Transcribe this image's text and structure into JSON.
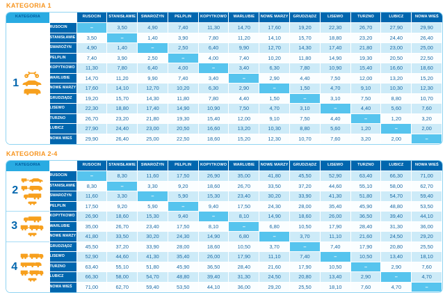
{
  "page": {
    "background": "#FFFFFF"
  },
  "colors": {
    "title_orange": "#F7941E",
    "icon_orange": "#F7A01E",
    "header_blue": "#0066AE",
    "corner_cyan": "#29ABE2",
    "diagonal_blue": "#56C4EE",
    "row_odd_blue": "#CDEBF8",
    "row_even_white": "#FBFEFF",
    "value_text_blue": "#1A6AA5",
    "border_light_blue": "#8FD4F2"
  },
  "stations": [
    "RUSOCIN",
    "STANISŁAWIE",
    "SWAROŻYN",
    "PELPLIN",
    "KOPYTKOWO",
    "WARLUBIE",
    "NOWE MARZY",
    "GRUDZIĄDZ",
    "LISEWO",
    "TURZNO",
    "LUBICZ",
    "NOWA WIEŚ"
  ],
  "empty_cell": "–",
  "tables": [
    {
      "title": "KATEGORIA 1",
      "corner_label": "KATEGORIA",
      "categories": [
        {
          "number": "1",
          "row_span": 12,
          "icons": [
            "motorcycle-icon",
            "car-icon",
            "van-icon"
          ]
        }
      ],
      "matrix": [
        [
          "–",
          "3,50",
          "4,90",
          "7,40",
          "11,30",
          "14,70",
          "17,60",
          "19,20",
          "22,30",
          "26,70",
          "27,90",
          "29,90"
        ],
        [
          "3,50",
          "–",
          "1,40",
          "3,90",
          "7,80",
          "11,20",
          "14,10",
          "15,70",
          "18,80",
          "23,20",
          "24,40",
          "26,40"
        ],
        [
          "4,90",
          "1,40",
          "–",
          "2,50",
          "6,40",
          "9,90",
          "12,70",
          "14,30",
          "17,40",
          "21,80",
          "23,00",
          "25,00"
        ],
        [
          "7,40",
          "3,90",
          "2,50",
          "–",
          "4,00",
          "7,40",
          "10,20",
          "11,80",
          "14,90",
          "19,30",
          "20,50",
          "22,50"
        ],
        [
          "11,30",
          "7,80",
          "6,40",
          "4,00",
          "–",
          "3,40",
          "6,30",
          "7,80",
          "10,90",
          "15,40",
          "16,60",
          "18,60"
        ],
        [
          "14,70",
          "11,20",
          "9,90",
          "7,40",
          "3,40",
          "–",
          "2,90",
          "4,40",
          "7,50",
          "12,00",
          "13,20",
          "15,20"
        ],
        [
          "17,60",
          "14,10",
          "12,70",
          "10,20",
          "6,30",
          "2,90",
          "–",
          "1,50",
          "4,70",
          "9,10",
          "10,30",
          "12,30"
        ],
        [
          "19,20",
          "15,70",
          "14,30",
          "11,80",
          "7,80",
          "4,40",
          "1,50",
          "–",
          "3,10",
          "7,50",
          "8,80",
          "10,70"
        ],
        [
          "22,30",
          "18,80",
          "17,40",
          "14,90",
          "10,90",
          "7,50",
          "4,70",
          "3,10",
          "–",
          "4,40",
          "5,60",
          "7,60"
        ],
        [
          "26,70",
          "23,20",
          "21,80",
          "19,30",
          "15,40",
          "12,00",
          "9,10",
          "7,50",
          "4,40",
          "–",
          "1,20",
          "3,20"
        ],
        [
          "27,90",
          "24,40",
          "23,00",
          "20,50",
          "16,60",
          "13,20",
          "10,30",
          "8,80",
          "5,60",
          "1,20",
          "–",
          "2,00"
        ],
        [
          "29,90",
          "26,40",
          "25,00",
          "22,50",
          "18,60",
          "15,20",
          "12,30",
          "10,70",
          "7,60",
          "3,20",
          "2,00",
          "–"
        ]
      ]
    },
    {
      "title": "KATEGORIA 2-4",
      "corner_label": "KATEGORIA",
      "categories": [
        {
          "number": "2",
          "row_span": 4,
          "icons": [
            "car-trailer-icon",
            "van-trailer-icon",
            "truck-icon",
            "axle-icon"
          ]
        },
        {
          "number": "3",
          "row_span": 3,
          "icons": [
            "truck-icon",
            "truck-trailer-icon",
            "axle-icon"
          ]
        },
        {
          "number": "4",
          "row_span": 5,
          "icons": [
            "truck-trailer-icon",
            "semi-truck-icon",
            "truck-trailer-icon",
            "axle-icon"
          ]
        }
      ],
      "matrix": [
        [
          "–",
          "8,30",
          "11,60",
          "17,50",
          "26,90",
          "35,00",
          "41,80",
          "45,50",
          "52,90",
          "63,40",
          "66,30",
          "71,00"
        ],
        [
          "8,30",
          "–",
          "3,30",
          "9,20",
          "18,60",
          "26,70",
          "33,50",
          "37,20",
          "44,60",
          "55,10",
          "58,00",
          "62,70"
        ],
        [
          "11,60",
          "3,30",
          "–",
          "5,90",
          "15,30",
          "23,40",
          "30,20",
          "33,90",
          "41,30",
          "51,80",
          "54,70",
          "59,40"
        ],
        [
          "17,50",
          "9,20",
          "5,90",
          "–",
          "9,40",
          "17,50",
          "24,30",
          "28,00",
          "35,40",
          "45,90",
          "48,80",
          "53,50"
        ],
        [
          "26,90",
          "18,60",
          "15,30",
          "9,40",
          "–",
          "8,10",
          "14,90",
          "18,60",
          "26,00",
          "36,50",
          "39,40",
          "44,10"
        ],
        [
          "35,00",
          "26,70",
          "23,40",
          "17,50",
          "8,10",
          "–",
          "6,80",
          "10,50",
          "17,90",
          "28,40",
          "31,30",
          "36,00"
        ],
        [
          "41,80",
          "33,50",
          "30,20",
          "24,30",
          "14,90",
          "6,80",
          "–",
          "3,70",
          "11,10",
          "21,60",
          "24,50",
          "29,20"
        ],
        [
          "45,50",
          "37,20",
          "33,90",
          "28,00",
          "18,60",
          "10,50",
          "3,70",
          "–",
          "7,40",
          "17,90",
          "20,80",
          "25,50"
        ],
        [
          "52,90",
          "44,60",
          "41,30",
          "35,40",
          "26,00",
          "17,90",
          "11,10",
          "7,40",
          "–",
          "10,50",
          "13,40",
          "18,10"
        ],
        [
          "63,40",
          "55,10",
          "51,80",
          "45,90",
          "36,50",
          "28,40",
          "21,60",
          "17,90",
          "10,50",
          "–",
          "2,90",
          "7,60"
        ],
        [
          "66,30",
          "58,00",
          "54,70",
          "48,80",
          "39,40",
          "31,30",
          "24,50",
          "20,80",
          "13,40",
          "2,90",
          "–",
          "4,70"
        ],
        [
          "71,00",
          "62,70",
          "59,40",
          "53,50",
          "44,10",
          "36,00",
          "29,20",
          "25,50",
          "18,10",
          "7,60",
          "4,70",
          "–"
        ]
      ]
    }
  ]
}
